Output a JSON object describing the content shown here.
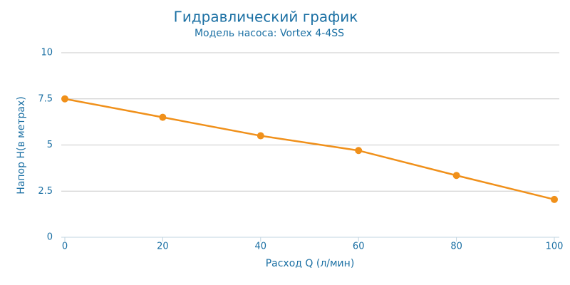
{
  "chart_data": {
    "type": "line",
    "title": "Гидравлический график",
    "subtitle": "Модель насоса: Vortex 4-4SS",
    "x_label": "Расход Q (л/мин)",
    "y_label": "Напор Н(в метрах)",
    "x": [
      0,
      20,
      40,
      60,
      80,
      100
    ],
    "series": [
      {
        "color": "#f0901a",
        "values": [
          7.5,
          6.5,
          5.5,
          4.7,
          3.35,
          2.05
        ]
      }
    ],
    "xlim": [
      0,
      100
    ],
    "xticks": [
      0,
      20,
      40,
      60,
      80,
      100
    ],
    "ylim": [
      0,
      10
    ],
    "yticks": [
      0,
      2.5,
      5,
      7.5,
      10
    ],
    "grid": true
  }
}
